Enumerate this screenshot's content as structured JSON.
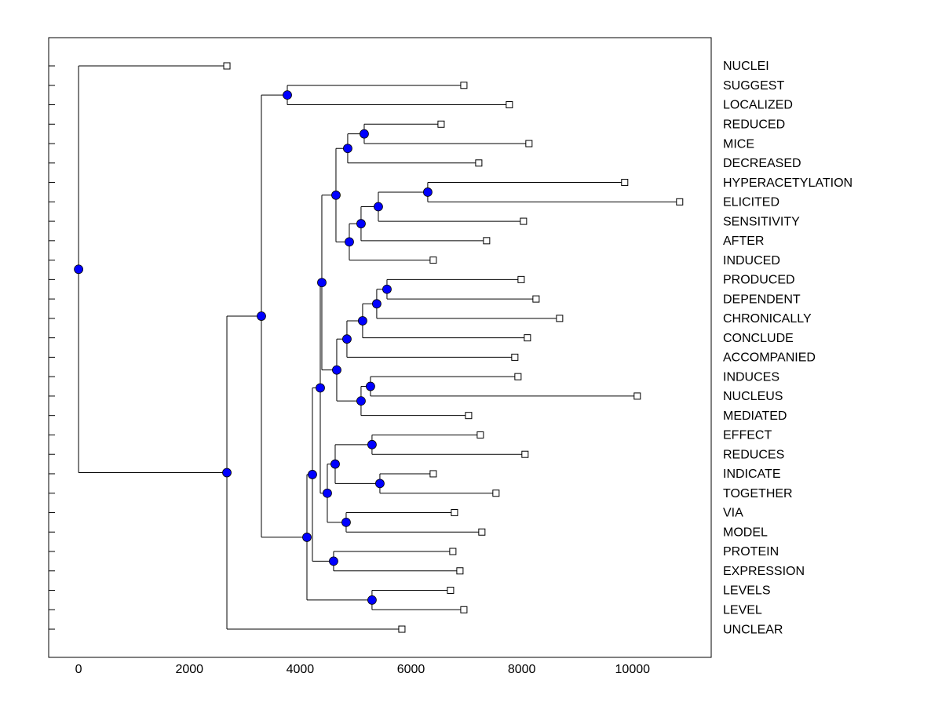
{
  "chart_data": {
    "type": "dendrogram",
    "xlim": [
      -540,
      11420
    ],
    "xticks": [
      0,
      2000,
      4000,
      6000,
      8000,
      10000
    ],
    "node_color": "#0000ff",
    "tree": {
      "value": 0,
      "children": [
        {
          "label": "NUCLEI",
          "value": 2677
        },
        {
          "value": 2677,
          "children": [
            {
              "value": 3300,
              "children": [
                {
                  "value": 3768,
                  "children": [
                    {
                      "label": "SUGGEST",
                      "value": 6955
                    },
                    {
                      "label": "LOCALIZED",
                      "value": 7776
                    }
                  ]
                },
                {
                  "value": 4122,
                  "children": [
                    {
                      "value": 4221,
                      "children": [
                        {
                          "value": 4363,
                          "children": [
                            {
                              "value": 4391,
                              "children": [
                                {
                                  "value": 4646,
                                  "children": [
                                    {
                                      "value": 4858,
                                      "children": [
                                        {
                                          "value": 5156,
                                          "children": [
                                            {
                                              "label": "REDUCED",
                                              "value": 6544
                                            },
                                            {
                                              "label": "MICE",
                                              "value": 8130
                                            }
                                          ]
                                        },
                                        {
                                          "label": "DECREASED",
                                          "value": 7224
                                        }
                                      ]
                                    },
                                    {
                                      "value": 4887,
                                      "children": [
                                        {
                                          "value": 5099,
                                          "children": [
                                            {
                                              "value": 5411,
                                              "children": [
                                                {
                                                  "value": 6303,
                                                  "children": [
                                                    {
                                                      "label": "HYPERACETYLATION",
                                                      "value": 9858
                                                    },
                                                    {
                                                      "label": "ELICITED",
                                                      "value": 10850
                                                    }
                                                  ]
                                                },
                                                {
                                                  "label": "SENSITIVITY",
                                                  "value": 8031
                                                }
                                              ]
                                            },
                                            {
                                              "label": "AFTER",
                                              "value": 7365
                                            }
                                          ]
                                        },
                                        {
                                          "label": "INDUCED",
                                          "value": 6402
                                        }
                                      ]
                                    }
                                  ]
                                },
                                {
                                  "value": 4660,
                                  "children": [
                                    {
                                      "value": 4844,
                                      "children": [
                                        {
                                          "value": 5127,
                                          "children": [
                                            {
                                              "value": 5382,
                                              "children": [
                                                {
                                                  "value": 5567,
                                                  "children": [
                                                    {
                                                      "label": "PRODUCED",
                                                      "value": 7989
                                                    },
                                                    {
                                                      "label": "DEPENDENT",
                                                      "value": 8258
                                                    }
                                                  ]
                                                },
                                                {
                                                  "label": "CHRONICALLY",
                                                  "value": 8683
                                                }
                                              ]
                                            },
                                            {
                                              "label": "CONCLUDE",
                                              "value": 8102
                                            }
                                          ]
                                        },
                                        {
                                          "label": "ACCOMPANIED",
                                          "value": 7875
                                        }
                                      ]
                                    },
                                    {
                                      "value": 5099,
                                      "children": [
                                        {
                                          "value": 5269,
                                          "children": [
                                            {
                                              "label": "INDUCES",
                                              "value": 7932
                                            },
                                            {
                                              "label": "NUCLEUS",
                                              "value": 10085
                                            }
                                          ]
                                        },
                                        {
                                          "label": "MEDIATED",
                                          "value": 7040
                                        }
                                      ]
                                    }
                                  ]
                                }
                              ]
                            },
                            {
                              "value": 4490,
                              "children": [
                                {
                                  "value": 4632,
                                  "children": [
                                    {
                                      "value": 5297,
                                      "children": [
                                        {
                                          "label": "EFFECT",
                                          "value": 7252
                                        },
                                        {
                                          "label": "REDUCES",
                                          "value": 8059
                                        }
                                      ]
                                    },
                                    {
                                      "value": 5439,
                                      "children": [
                                        {
                                          "label": "INDICATE",
                                          "value": 6402
                                        },
                                        {
                                          "label": "TOGETHER",
                                          "value": 7535
                                        }
                                      ]
                                    }
                                  ]
                                },
                                {
                                  "value": 4830,
                                  "children": [
                                    {
                                      "label": "VIA",
                                      "value": 6785
                                    },
                                    {
                                      "label": "MODEL",
                                      "value": 7280
                                    }
                                  ]
                                }
                              ]
                            }
                          ]
                        },
                        {
                          "value": 4603,
                          "children": [
                            {
                              "label": "PROTEIN",
                              "value": 6756
                            },
                            {
                              "label": "EXPRESSION",
                              "value": 6884
                            }
                          ]
                        }
                      ]
                    },
                    {
                      "value": 5297,
                      "children": [
                        {
                          "label": "LEVELS",
                          "value": 6714
                        },
                        {
                          "label": "LEVEL",
                          "value": 6955
                        }
                      ]
                    }
                  ]
                }
              ]
            },
            {
              "label": "UNCLEAR",
              "value": 5836
            }
          ]
        }
      ]
    }
  }
}
